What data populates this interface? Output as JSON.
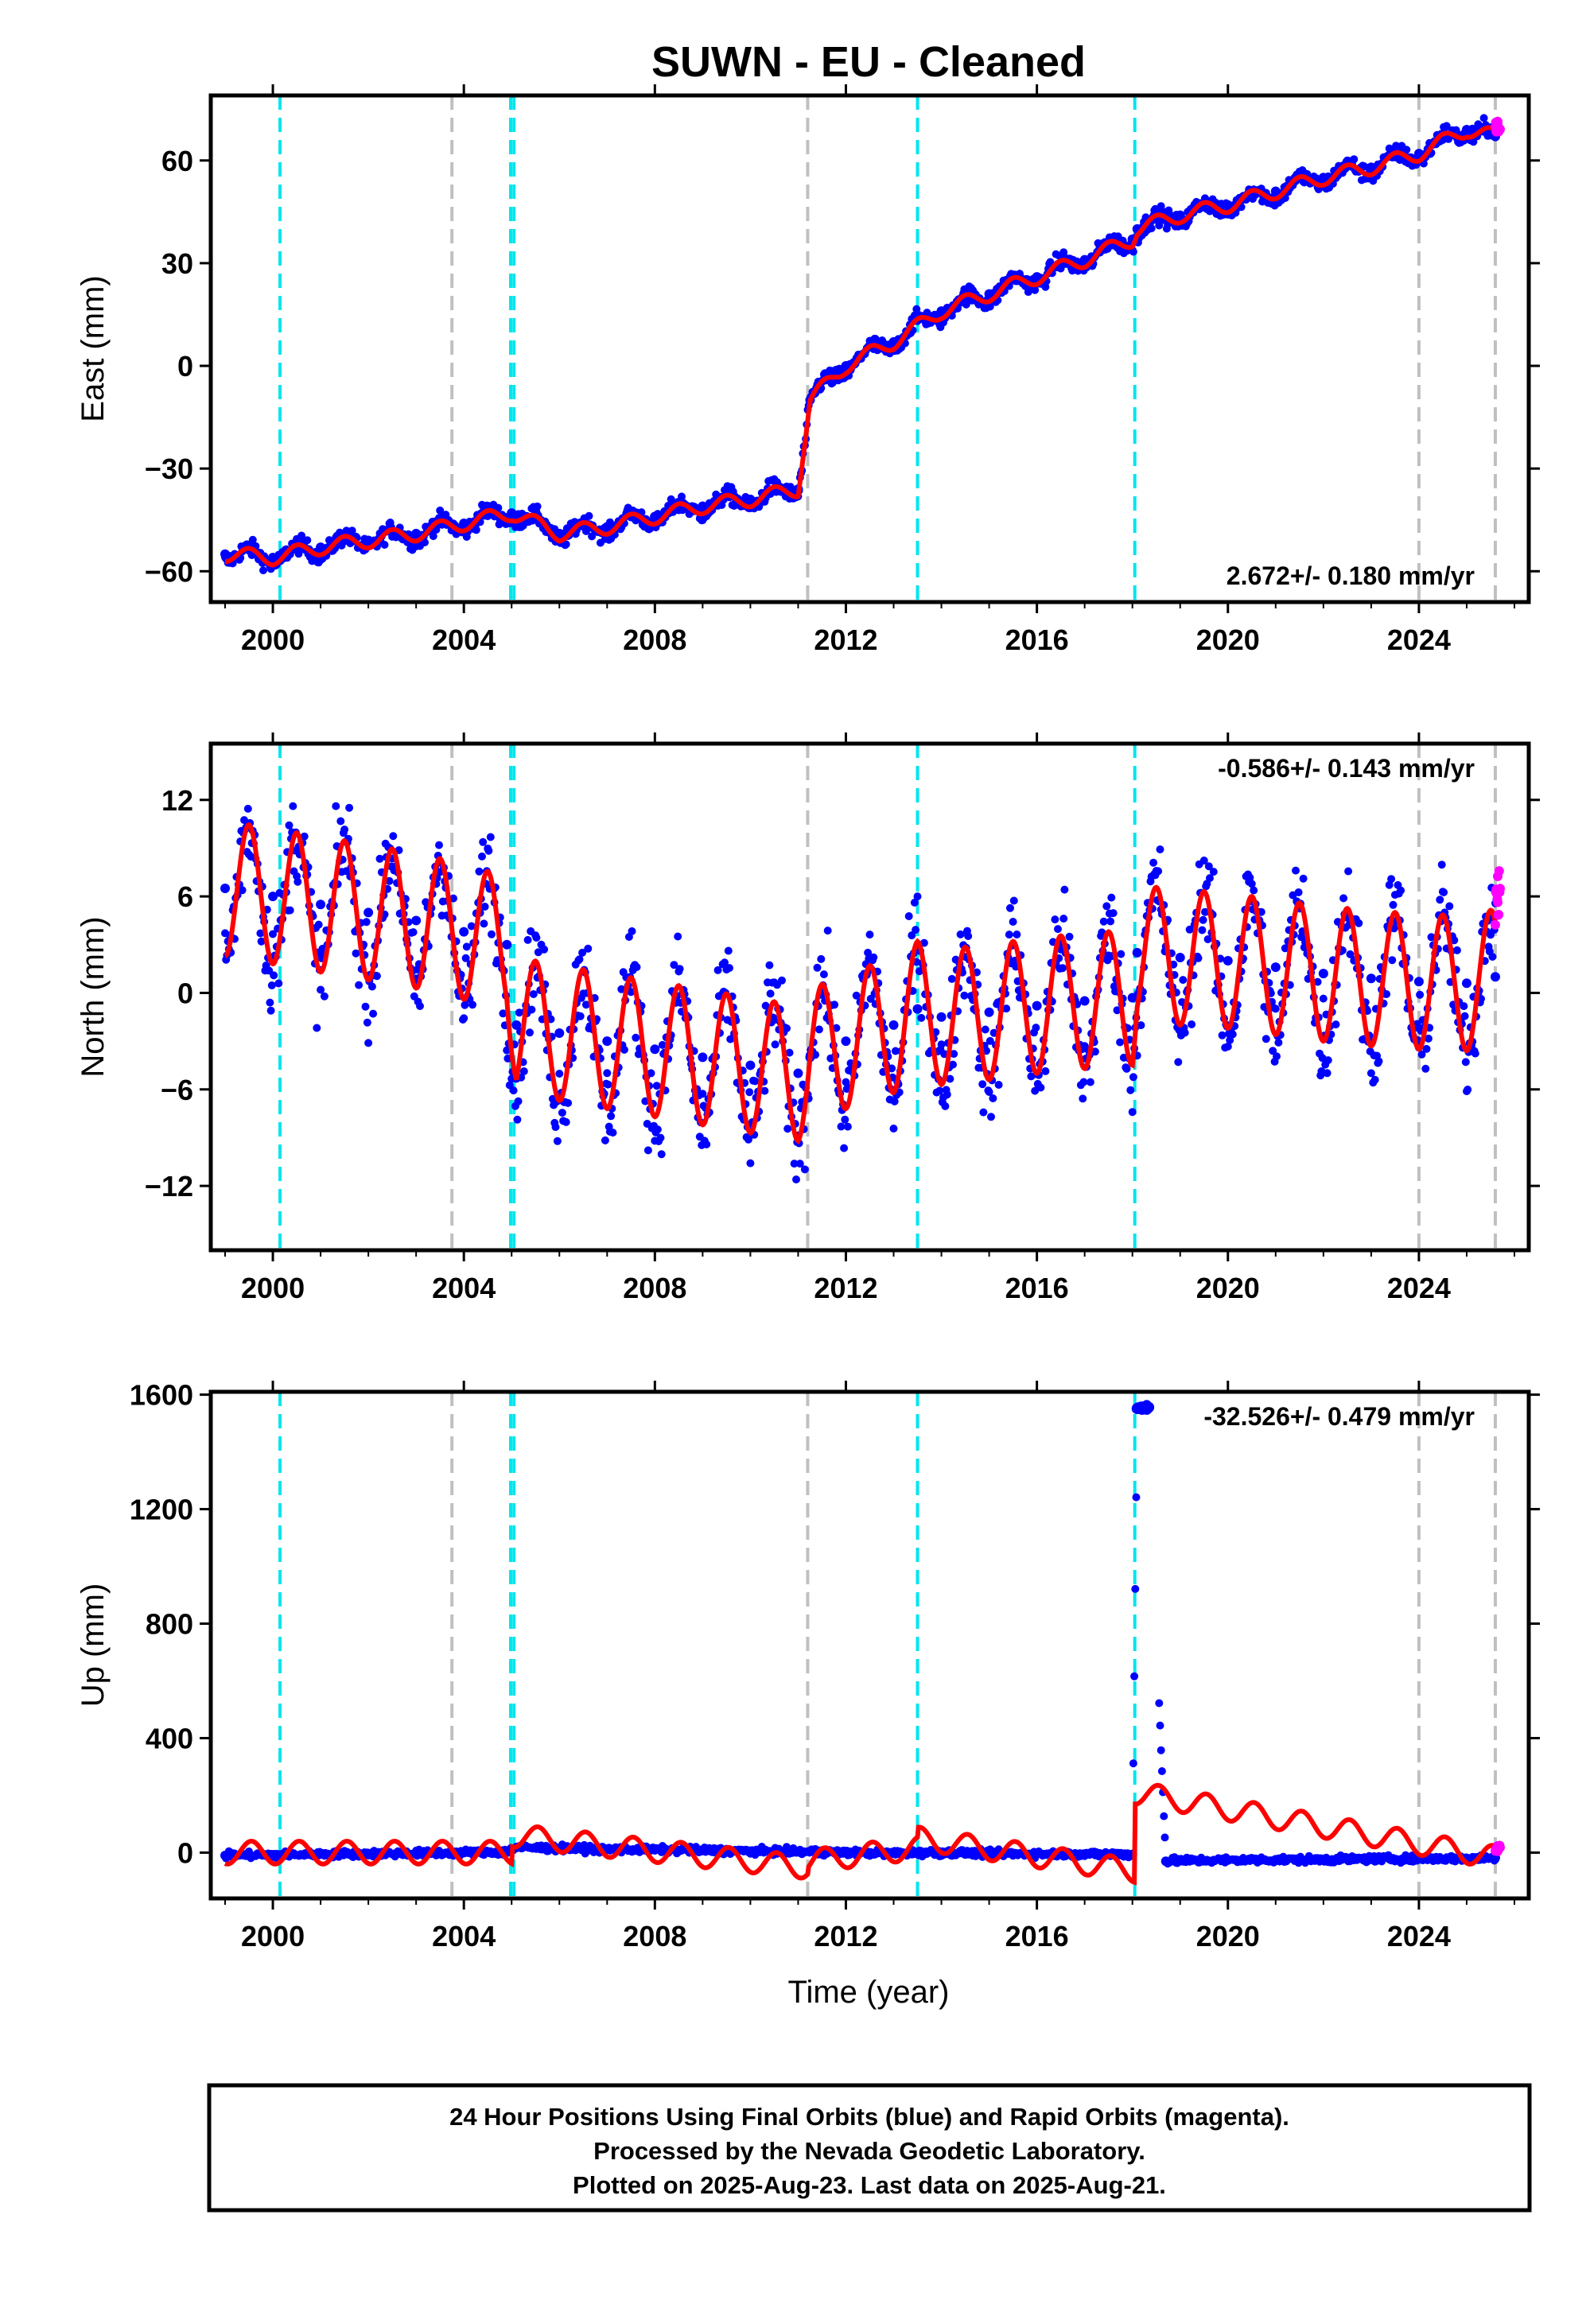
{
  "title": "SUWN  - EU - Cleaned",
  "colors": {
    "final": "#0000ff",
    "rapid": "#ff00ff",
    "model": "#ff0000",
    "cyan_event": "#00e5ee",
    "gray_event": "#c0c0c0"
  },
  "xlabel": "Time (year)",
  "x_ticks": [
    2000,
    2004,
    2008,
    2012,
    2016,
    2020,
    2024
  ],
  "x_range": [
    1998.7,
    2026.3
  ],
  "events_cyan": [
    2000.15,
    2004.98,
    2005.05,
    2013.5,
    2018.05
  ],
  "events_gray": [
    2003.75,
    2011.2,
    2024.0,
    2025.6
  ],
  "chart_data": [
    {
      "type": "scatter",
      "panel": "east",
      "ylabel": "East (mm)",
      "ylim": [
        -69,
        79
      ],
      "y_ticks": [
        60,
        30,
        0,
        -30,
        -60
      ],
      "y_tick_labels": [
        "60",
        "30",
        "0",
        "−30",
        "−60"
      ],
      "rate_label": "2.672+/- 0.180 mm/yr",
      "rate_position": "bottom-right",
      "series": [
        {
          "name": "final",
          "x": [
            1999.0,
            2000.0,
            2001.0,
            2002.0,
            2003.0,
            2004.0,
            2005.0,
            2006.0,
            2007.0,
            2008.0,
            2009.0,
            2010.0,
            2011.0,
            2011.25,
            2012.0,
            2013.0,
            2014.0,
            2015.0,
            2016.0,
            2017.0,
            2018.0,
            2018.1,
            2019.0,
            2020.0,
            2021.0,
            2022.0,
            2023.0,
            2024.0,
            2025.0,
            2025.6
          ],
          "y": [
            -55,
            -56,
            -53,
            -51,
            -49,
            -46,
            -43,
            -49,
            -47,
            -44,
            -41,
            -39,
            -36,
            -10,
            0,
            7,
            16,
            21,
            26,
            31,
            37,
            40,
            44,
            47,
            51,
            55,
            58,
            62,
            69,
            67
          ]
        },
        {
          "name": "rapid",
          "x": [
            2025.6,
            2025.65
          ],
          "y": [
            70,
            69
          ]
        }
      ]
    },
    {
      "type": "scatter",
      "panel": "north",
      "ylabel": "North (mm)",
      "ylim": [
        -16,
        15.5
      ],
      "y_ticks": [
        12,
        6,
        0,
        -6,
        -12
      ],
      "y_tick_labels": [
        "12",
        "6",
        "0",
        "−6",
        "−12"
      ],
      "rate_label": "-0.586+/- 0.143 mm/yr",
      "rate_position": "top-right",
      "series": [
        {
          "name": "final",
          "x": [
            1999.0,
            2000.0,
            2001.0,
            2002.0,
            2003.0,
            2004.0,
            2004.9,
            2005.1,
            2006.0,
            2007.0,
            2008.0,
            2009.0,
            2010.0,
            2011.0,
            2011.25,
            2012.0,
            2013.0,
            2013.5,
            2014.0,
            2015.0,
            2016.0,
            2017.0,
            2018.0,
            2018.1,
            2019.0,
            2020.0,
            2021.0,
            2022.0,
            2023.0,
            2024.0,
            2025.0,
            2025.6
          ],
          "y": [
            6.5,
            6.0,
            5.5,
            5.0,
            4.5,
            3.8,
            3.0,
            -2.0,
            -2.5,
            -3.0,
            -3.5,
            -4.0,
            -4.5,
            -5.0,
            -4.0,
            -3.0,
            -2.0,
            -1.0,
            -1.5,
            -1.2,
            -0.8,
            -0.5,
            -0.3,
            2.5,
            2.2,
            2.0,
            1.6,
            1.2,
            0.9,
            0.7,
            0.6,
            1.0
          ]
        },
        {
          "name": "rapid",
          "x": [
            2025.6,
            2025.65
          ],
          "y": [
            5.0,
            6.5
          ]
        }
      ]
    },
    {
      "type": "scatter",
      "panel": "up",
      "ylabel": "Up (mm)",
      "ylim": [
        -160,
        1610
      ],
      "y_ticks": [
        1600,
        1200,
        800,
        400,
        0
      ],
      "y_tick_labels": [
        "1600",
        "1200",
        "800",
        "400",
        "0"
      ],
      "rate_label": "-32.526+/- 0.479 mm/yr",
      "rate_position": "top-right",
      "series": [
        {
          "name": "final",
          "x": [
            1999.0,
            2000.0,
            2001.0,
            2002.0,
            2003.0,
            2004.0,
            2004.9,
            2005.1,
            2006.0,
            2007.0,
            2008.0,
            2009.0,
            2010.0,
            2011.0,
            2012.0,
            2013.0,
            2014.0,
            2015.0,
            2016.0,
            2017.0,
            2018.0,
            2018.1,
            2018.3,
            2018.7,
            2019.0,
            2020.0,
            2021.0,
            2022.0,
            2023.0,
            2024.0,
            2025.0,
            2025.6
          ],
          "y": [
            -10,
            -8,
            -5,
            -4,
            -2,
            0,
            2,
            18,
            15,
            12,
            10,
            8,
            5,
            3,
            0,
            -2,
            0,
            -3,
            -4,
            -5,
            -6,
            1550,
            1565,
            -30,
            -28,
            -26,
            -25,
            -24,
            -22,
            -21,
            -20,
            -18
          ]
        },
        {
          "name": "rapid",
          "x": [
            2025.6,
            2025.65
          ],
          "y": [
            10,
            20
          ]
        }
      ]
    }
  ],
  "footer": {
    "line1": "24 Hour Positions Using Final Orbits (blue) and Rapid Orbits (magenta).",
    "line2": "Processed by the Nevada Geodetic Laboratory.",
    "line3": "Plotted on 2025-Aug-23. Last data on 2025-Aug-21."
  }
}
